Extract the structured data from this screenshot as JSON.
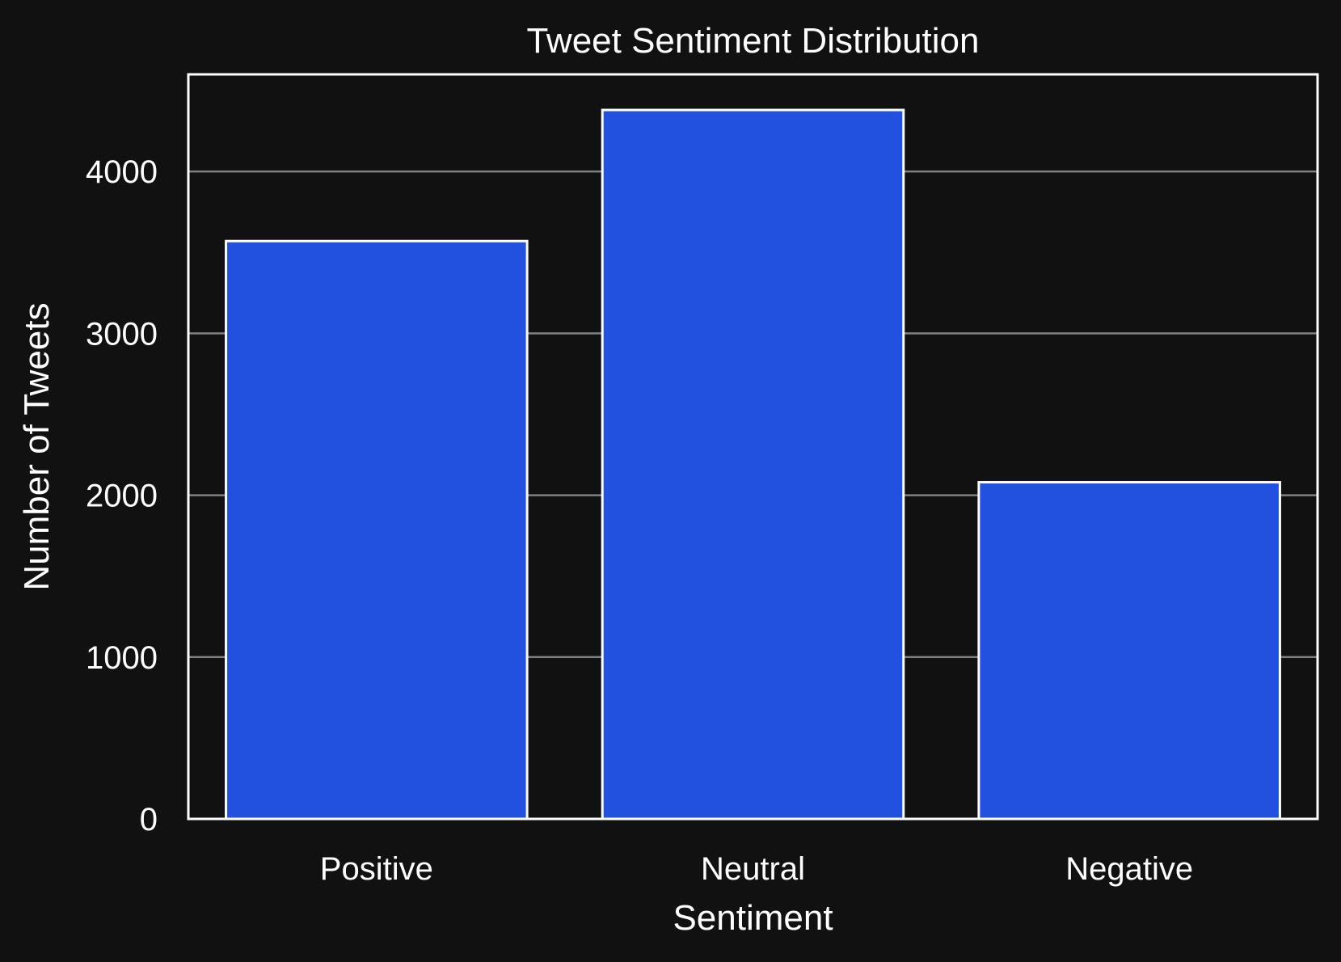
{
  "chart_data": {
    "type": "bar",
    "title": "Tweet Sentiment Distribution",
    "xlabel": "Sentiment",
    "ylabel": "Number of Tweets",
    "categories": [
      "Positive",
      "Neutral",
      "Negative"
    ],
    "values": [
      3570,
      4380,
      2080
    ],
    "ylim": [
      0,
      4600
    ],
    "yticks": [
      0,
      1000,
      2000,
      3000,
      4000
    ],
    "grid": true,
    "legend": "none"
  },
  "colors": {
    "background": "#111111",
    "bar_fill": "#2251e0",
    "bar_edge": "#ffffff",
    "grid": "#808080",
    "axes": "#ffffff",
    "text": "#ffffff"
  }
}
